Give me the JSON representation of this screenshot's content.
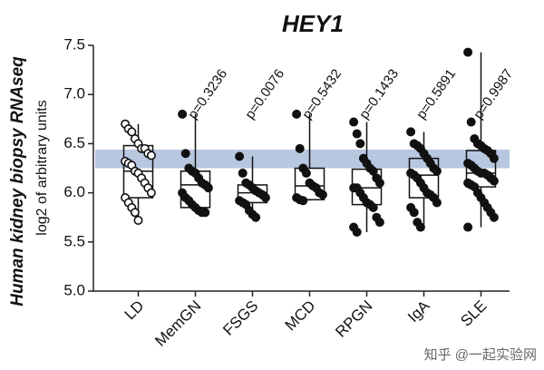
{
  "chart_data": {
    "type": "box",
    "title": "HEY1",
    "y_label": "Human kidney biopsy RNAseq",
    "y_sublabel": "log2 of arbitrary units",
    "watermark": "知乎 @一起实验网",
    "categories": [
      "LD",
      "MemGN",
      "FSGS",
      "MCD",
      "RPGN",
      "IgA",
      "SLE"
    ],
    "ylim": [
      5.0,
      7.5
    ],
    "yticks": [
      {
        "value": 5.0,
        "label": "5.0"
      },
      {
        "value": 5.5,
        "label": "5.5"
      },
      {
        "value": 6.0,
        "label": "6.0"
      },
      {
        "value": 6.5,
        "label": "6.5"
      },
      {
        "value": 7.0,
        "label": "7.0"
      },
      {
        "value": 7.5,
        "label": "7.5"
      }
    ],
    "reference_band": [
      6.25,
      6.44
    ],
    "band_color": "#b8c7e0",
    "boxes": [
      {
        "min": 5.72,
        "q1": 5.95,
        "median": 6.22,
        "q3": 6.48,
        "max": 6.7,
        "hollow": true,
        "points": [
          6.7,
          6.65,
          6.62,
          6.55,
          6.5,
          6.45,
          6.45,
          6.4,
          6.38,
          6.32,
          6.3,
          6.28,
          6.22,
          6.2,
          6.15,
          6.1,
          6.05,
          6.0,
          5.95,
          5.9,
          5.85,
          5.8,
          5.72
        ]
      },
      {
        "min": 5.8,
        "q1": 5.85,
        "median": 6.08,
        "q3": 6.22,
        "max": 6.8,
        "hollow": false,
        "p_label": "p=0.3236",
        "points": [
          6.8,
          6.4,
          6.25,
          6.22,
          6.2,
          6.15,
          6.1,
          6.08,
          6.05,
          6.0,
          5.95,
          5.92,
          5.88,
          5.85,
          5.82,
          5.8,
          5.8
        ]
      },
      {
        "min": 5.75,
        "q1": 5.9,
        "median": 6.0,
        "q3": 6.08,
        "max": 6.37,
        "hollow": false,
        "p_label": "p=0.0076",
        "points": [
          6.37,
          6.2,
          6.1,
          6.08,
          6.05,
          6.02,
          6.0,
          5.98,
          5.95,
          5.92,
          5.9,
          5.88,
          5.82,
          5.78,
          5.75
        ]
      },
      {
        "min": 5.92,
        "q1": 5.93,
        "median": 6.07,
        "q3": 6.25,
        "max": 6.8,
        "hollow": false,
        "p_label": "p=0.5432",
        "points": [
          6.8,
          6.45,
          6.25,
          6.2,
          6.1,
          6.07,
          6.05,
          6.0,
          5.98,
          5.95,
          5.93,
          5.92
        ]
      },
      {
        "min": 5.6,
        "q1": 5.88,
        "median": 6.05,
        "q3": 6.24,
        "max": 6.72,
        "hollow": false,
        "p_label": "p=0.1433",
        "points": [
          6.72,
          6.6,
          6.5,
          6.35,
          6.3,
          6.25,
          6.22,
          6.15,
          6.1,
          6.05,
          6.05,
          6.0,
          5.95,
          5.9,
          5.88,
          5.85,
          5.75,
          5.7,
          5.65,
          5.6
        ]
      },
      {
        "min": 5.65,
        "q1": 5.95,
        "median": 6.18,
        "q3": 6.35,
        "max": 6.62,
        "hollow": false,
        "p_label": "p=0.5891",
        "points": [
          6.62,
          6.5,
          6.48,
          6.45,
          6.4,
          6.35,
          6.3,
          6.25,
          6.22,
          6.2,
          6.18,
          6.15,
          6.1,
          6.05,
          6.0,
          5.98,
          5.95,
          5.9,
          5.85,
          5.8,
          5.7,
          5.65
        ]
      },
      {
        "min": 5.65,
        "q1": 6.06,
        "median": 6.2,
        "q3": 6.43,
        "max": 7.43,
        "hollow": false,
        "p_label": "p=0.9987",
        "points": [
          7.43,
          6.72,
          6.55,
          6.5,
          6.48,
          6.45,
          6.43,
          6.4,
          6.35,
          6.3,
          6.28,
          6.25,
          6.22,
          6.2,
          6.2,
          6.18,
          6.15,
          6.12,
          6.1,
          6.08,
          6.06,
          6.0,
          5.95,
          5.9,
          5.85,
          5.8,
          5.75,
          5.65
        ]
      }
    ]
  }
}
